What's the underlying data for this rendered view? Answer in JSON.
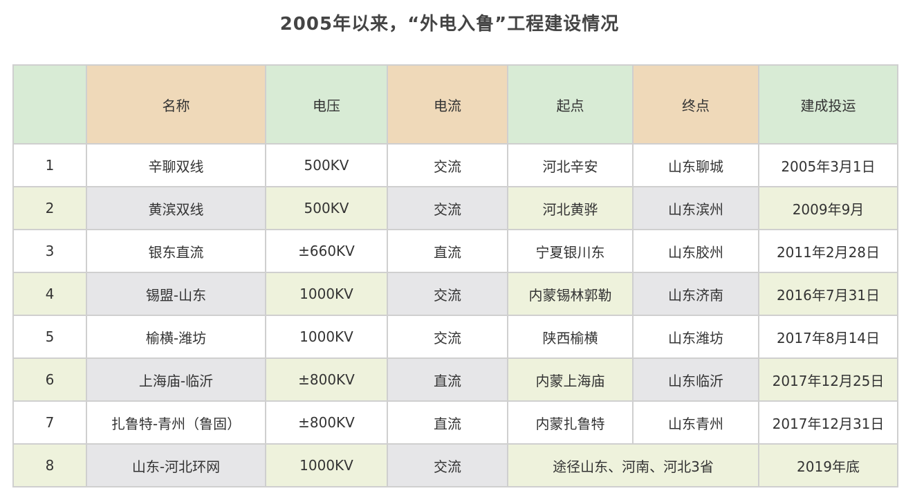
{
  "title": "2005年以来，“外电入鲁”工程建设情况",
  "table": {
    "headers": [
      "",
      "名称",
      "电压",
      "电流",
      "起点",
      "终点",
      "建成投运"
    ],
    "rows": [
      {
        "no": "1",
        "name": "辛聊双线",
        "voltage": "500KV",
        "current": "交流",
        "start": "河北辛安",
        "end": "山东聊城",
        "date": "2005年3月1日"
      },
      {
        "no": "2",
        "name": "黄滨双线",
        "voltage": "500KV",
        "current": "交流",
        "start": "河北黄骅",
        "end": "山东滨州",
        "date": "2009年9月"
      },
      {
        "no": "3",
        "name": "银东直流",
        "voltage": "±660KV",
        "current": "直流",
        "start": "宁夏银川东",
        "end": "山东胶州",
        "date": "2011年2月28日"
      },
      {
        "no": "4",
        "name": "锡盟-山东",
        "voltage": "1000KV",
        "current": "交流",
        "start": "内蒙锡林郭勒",
        "end": "山东济南",
        "date": "2016年7月31日"
      },
      {
        "no": "5",
        "name": "榆横-潍坊",
        "voltage": "1000KV",
        "current": "交流",
        "start": "陕西榆横",
        "end": "山东潍坊",
        "date": "2017年8月14日"
      },
      {
        "no": "6",
        "name": "上海庙-临沂",
        "voltage": "±800KV",
        "current": "直流",
        "start": "内蒙上海庙",
        "end": "山东临沂",
        "date": "2017年12月25日"
      },
      {
        "no": "7",
        "name": "扎鲁特-青州（鲁固）",
        "voltage": "±800KV",
        "current": "直流",
        "start": "内蒙扎鲁特",
        "end": "山东青州",
        "date": "2017年12月31日"
      },
      {
        "no": "8",
        "name": "山东-河北环网",
        "voltage": "1000KV",
        "current": "交流",
        "route": "途径山东、河南、河北3省",
        "date": "2019年底"
      }
    ]
  }
}
